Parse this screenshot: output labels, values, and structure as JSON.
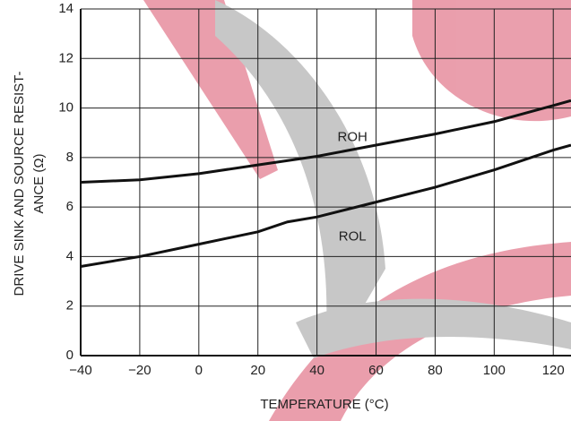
{
  "chart_data": {
    "type": "line",
    "y_label_lines": [
      "DRIVE SINK AND SOURCE RESIST-",
      "ANCE (Ω)"
    ],
    "x_label": "TEMPERATURE (°C)",
    "xlim": [
      -40,
      126
    ],
    "ylim": [
      0,
      14
    ],
    "xticks": [
      {
        "value": -40,
        "label": "−40"
      },
      {
        "value": -20,
        "label": "−20"
      },
      0,
      20,
      40,
      60,
      80,
      100,
      120
    ],
    "yticks": [
      0,
      2,
      4,
      6,
      8,
      10,
      12,
      14
    ],
    "grid": true,
    "series": [
      {
        "name": "ROH",
        "color": "#111111",
        "x": [
          -40,
          -20,
          0,
          20,
          40,
          60,
          80,
          100,
          120,
          126
        ],
        "values": [
          7.0,
          7.1,
          7.35,
          7.7,
          8.05,
          8.5,
          8.95,
          9.45,
          10.1,
          10.3
        ]
      },
      {
        "name": "ROL",
        "color": "#111111",
        "x": [
          -40,
          -20,
          0,
          20,
          30,
          40,
          60,
          80,
          100,
          120,
          126
        ],
        "values": [
          3.6,
          4.0,
          4.5,
          5.0,
          5.4,
          5.6,
          6.2,
          6.8,
          7.5,
          8.3,
          8.5
        ]
      }
    ]
  }
}
